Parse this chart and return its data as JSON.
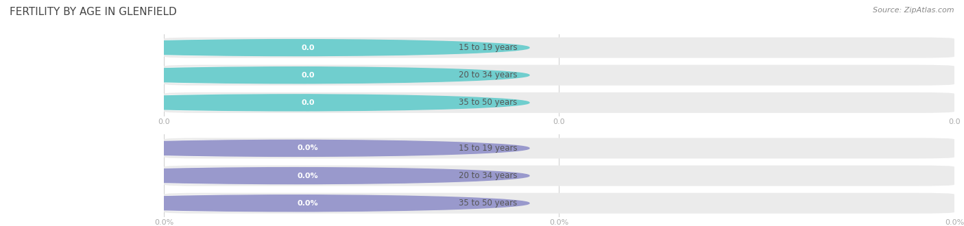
{
  "title": "FERTILITY BY AGE IN GLENFIELD",
  "source": "Source: ZipAtlas.com",
  "categories": [
    "15 to 19 years",
    "20 to 34 years",
    "35 to 50 years"
  ],
  "values_count": [
    0.0,
    0.0,
    0.0
  ],
  "values_pct": [
    0.0,
    0.0,
    0.0
  ],
  "bar_color_top": "#70cece",
  "bar_color_bottom": "#9999cc",
  "bar_bg_color": "#ebebeb",
  "background_color": "#ffffff",
  "text_color_label": "#555555",
  "text_color_tick": "#aaaaaa",
  "title_fontsize": 11,
  "label_fontsize": 8.5,
  "tick_fontsize": 8,
  "source_fontsize": 8,
  "gridline_color": "#cccccc"
}
